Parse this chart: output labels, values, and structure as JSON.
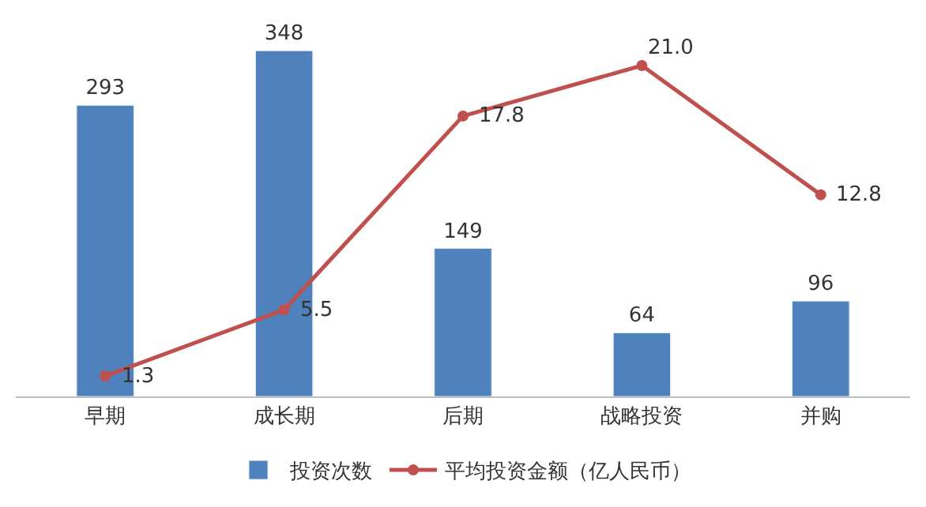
{
  "chart_data": {
    "type": "bar",
    "categories": [
      "早期",
      "成长期",
      "后期",
      "战略投资",
      "并购"
    ],
    "series": [
      {
        "name": "投资次数",
        "color": "#4f81bd",
        "values": [
          293,
          348,
          149,
          64,
          96
        ],
        "value_labels": [
          "293",
          "348",
          "149",
          "64",
          "96"
        ]
      },
      {
        "name": "平均投资金额（亿人民币）",
        "type": "line",
        "axis": "y2",
        "color": "#c0504d",
        "values": [
          1.3,
          5.5,
          17.8,
          21.0,
          12.8
        ],
        "value_labels": [
          "1.3",
          "5.5",
          "17.8",
          "21.0",
          "12.8"
        ],
        "marker": "circle",
        "line_style": "solid"
      }
    ],
    "tick_labels": "x",
    "legend": "bottom"
  }
}
